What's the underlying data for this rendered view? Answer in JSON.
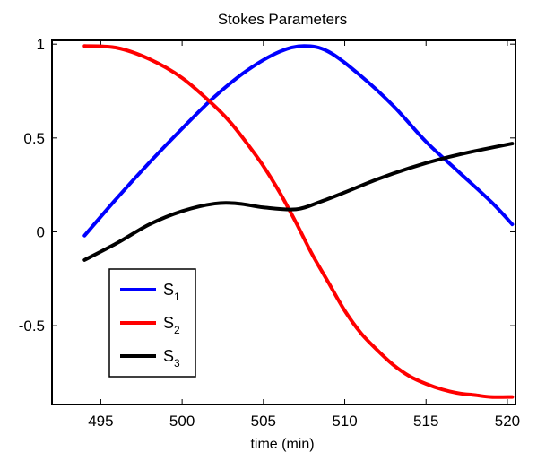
{
  "chart_data": {
    "type": "line",
    "title": "Stokes Parameters",
    "xlabel": "time (min)",
    "ylabel": "",
    "xlim": [
      492,
      520.5
    ],
    "ylim": [
      -0.92,
      1.02
    ],
    "xticks": [
      495,
      500,
      505,
      510,
      515,
      520
    ],
    "yticks": [
      1,
      0.5,
      0,
      -0.5
    ],
    "ytick_labels": [
      "1",
      "0.5",
      "0",
      "-0.5"
    ],
    "grid": false,
    "legend_position": "bottom-left",
    "series": [
      {
        "name": "S",
        "subscript": "1",
        "color": "#0000ff",
        "x": [
          494,
          496,
          498,
          500,
          502,
          504,
          506,
          507.5,
          509,
          511,
          513,
          515,
          517,
          519,
          520.3
        ],
        "y": [
          -0.02,
          0.18,
          0.37,
          0.55,
          0.72,
          0.86,
          0.96,
          0.99,
          0.96,
          0.83,
          0.67,
          0.48,
          0.32,
          0.16,
          0.04
        ]
      },
      {
        "name": "S",
        "subscript": "2",
        "color": "#ff0000",
        "x": [
          494,
          496,
          498,
          500,
          502,
          503,
          504,
          505,
          506,
          507,
          508,
          509,
          510,
          511,
          512,
          513,
          514,
          515,
          516,
          517,
          518,
          519,
          520.3
        ],
        "y": [
          0.99,
          0.98,
          0.92,
          0.82,
          0.67,
          0.58,
          0.47,
          0.35,
          0.21,
          0.05,
          -0.12,
          -0.27,
          -0.42,
          -0.54,
          -0.63,
          -0.71,
          -0.77,
          -0.81,
          -0.84,
          -0.86,
          -0.87,
          -0.88,
          -0.88
        ]
      },
      {
        "name": "S",
        "subscript": "3",
        "color": "#000000",
        "x": [
          494,
          496,
          498,
          500,
          502,
          503.5,
          505,
          507,
          508.5,
          510,
          512,
          514,
          516,
          518,
          520.3
        ],
        "y": [
          -0.15,
          -0.06,
          0.04,
          0.11,
          0.15,
          0.15,
          0.13,
          0.12,
          0.16,
          0.21,
          0.28,
          0.34,
          0.39,
          0.43,
          0.47
        ]
      }
    ]
  }
}
